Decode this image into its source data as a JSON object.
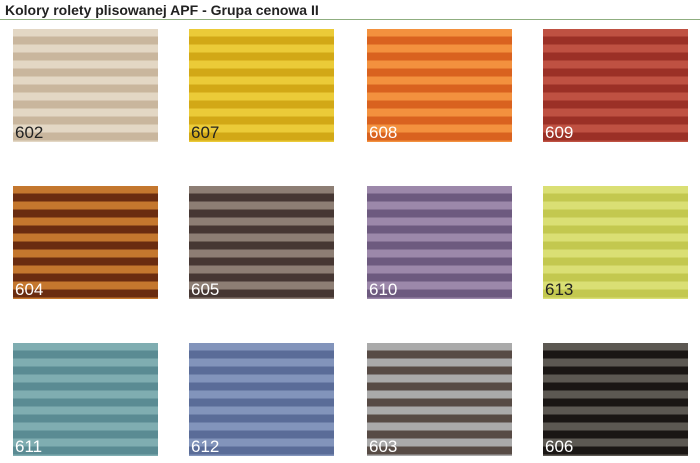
{
  "title": "Kolory rolety plisowanej APF - Grupa cenowa II",
  "accent_line_color": "#8fae80",
  "swatches": [
    {
      "code": "602",
      "light": "#e3d7c4",
      "dark": "#c9b69d",
      "label_color": "#222222"
    },
    {
      "code": "607",
      "light": "#ebcb38",
      "dark": "#d2a816",
      "label_color": "#222222"
    },
    {
      "code": "608",
      "light": "#f3913e",
      "dark": "#d9621f",
      "label_color": "#ffffff"
    },
    {
      "code": "609",
      "light": "#bf5142",
      "dark": "#9b3026",
      "label_color": "#ffffff"
    },
    {
      "code": "604",
      "light": "#c4772e",
      "dark": "#6a2c10",
      "label_color": "#ffffff"
    },
    {
      "code": "605",
      "light": "#8d7e74",
      "dark": "#463733",
      "label_color": "#ffffff"
    },
    {
      "code": "610",
      "light": "#9c88aa",
      "dark": "#6d5a7f",
      "label_color": "#ffffff"
    },
    {
      "code": "613",
      "light": "#dadf74",
      "dark": "#c3c84f",
      "label_color": "#222222"
    },
    {
      "code": "611",
      "light": "#7fadb1",
      "dark": "#5a8b93",
      "label_color": "#ffffff"
    },
    {
      "code": "612",
      "light": "#8294bb",
      "dark": "#5a6c98",
      "label_color": "#ffffff"
    },
    {
      "code": "603",
      "light": "#aaaaaa",
      "dark": "#574b45",
      "label_color": "#ffffff"
    },
    {
      "code": "606",
      "light": "#5c5852",
      "dark": "#1a1614",
      "label_color": "#ffffff"
    }
  ]
}
